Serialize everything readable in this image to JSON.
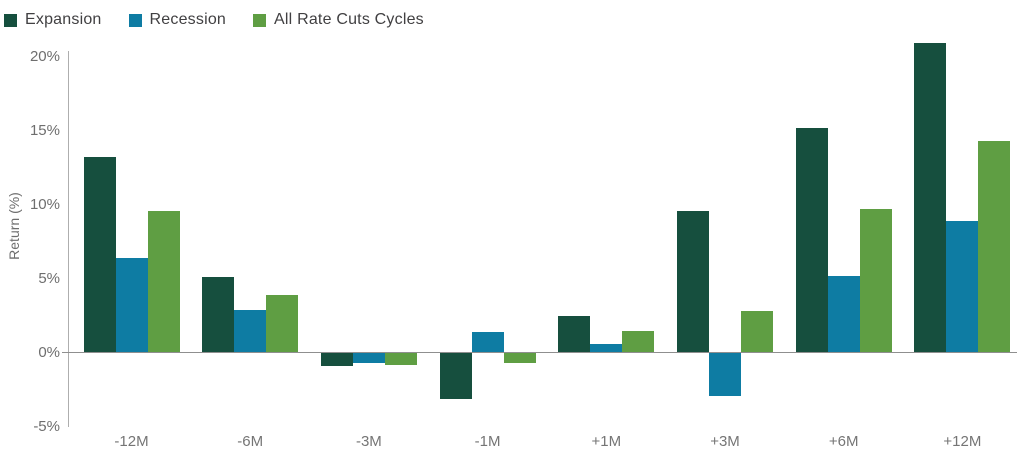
{
  "chart_data": {
    "type": "bar",
    "title": "",
    "xlabel": "",
    "ylabel": "Return (%)",
    "categories": [
      "-12M",
      "-6M",
      "-3M",
      "-1M",
      "+1M",
      "+3M",
      "+6M",
      "+12M"
    ],
    "series": [
      {
        "name": "Expansion",
        "color": "#164F3E",
        "values": [
          13.2,
          5.1,
          -0.9,
          -3.1,
          2.5,
          9.6,
          15.2,
          20.9
        ]
      },
      {
        "name": "Recession",
        "color": "#0E7CA3",
        "values": [
          6.4,
          2.9,
          -0.7,
          1.4,
          0.6,
          -2.9,
          5.2,
          8.9
        ]
      },
      {
        "name": "All Rate Cuts Cycles",
        "color": "#5F9E43",
        "values": [
          9.6,
          3.9,
          -0.8,
          -0.7,
          1.5,
          2.8,
          9.7,
          14.3
        ]
      }
    ],
    "ylim": [
      -5,
      20
    ],
    "yticks": [
      20,
      15,
      10,
      5,
      0,
      -5
    ],
    "ytick_labels": [
      "20%",
      "15%",
      "10%",
      "5%",
      "0%",
      "-5%"
    ],
    "grid": false,
    "legend_position": "top-left",
    "colors": {
      "legend_text": "#414042",
      "tick_text": "#6E6E6E",
      "x_label_text": "#757575",
      "axis_line": "#AEAEAE",
      "zero_line": "#8F8F8F",
      "background": "#FFFFFF"
    }
  }
}
